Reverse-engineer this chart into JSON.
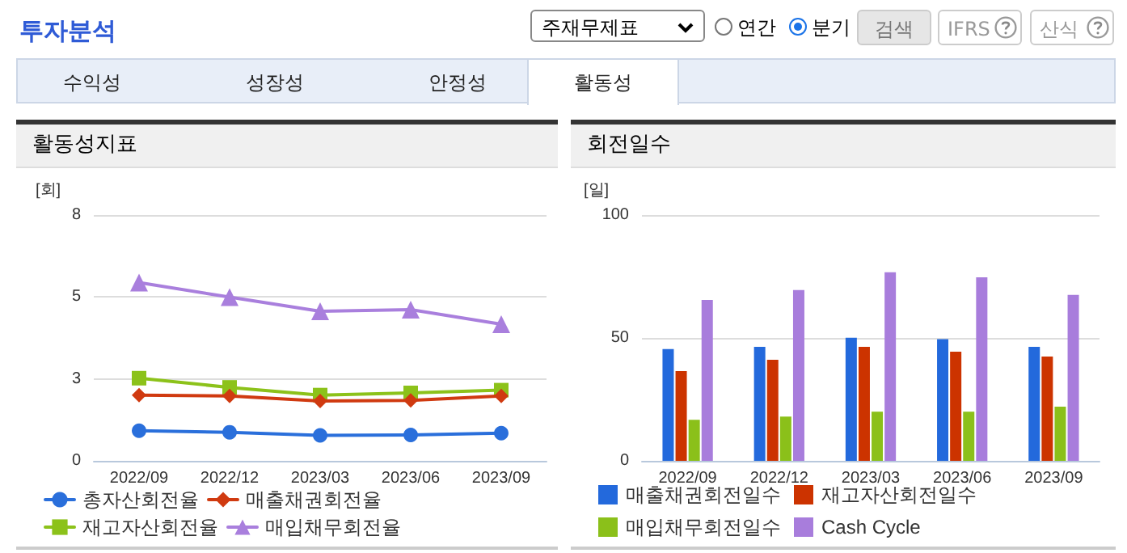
{
  "chart_data": [
    {
      "type": "other",
      "title": "투자분석",
      "annotations": [
        "주재무제표",
        "연간",
        "분기",
        "검색",
        "IFRS",
        "산식",
        "수익성",
        "성장성",
        "안정성",
        "활동성"
      ]
    },
    {
      "type": "line",
      "title": "활동성지표",
      "ylabel": "[회]",
      "categories": [
        "2022/09",
        "2022/12",
        "2023/03",
        "2023/06",
        "2023/09"
      ],
      "ylim": [
        0,
        8
      ],
      "yticks": [
        0,
        {
          "value": 2.667,
          "label": "3"
        },
        {
          "value": 5.333,
          "label": "5"
        },
        8
      ],
      "grid": "y",
      "legend": "bottom",
      "line_style": "solid",
      "series": [
        {
          "name": "총자산회전율",
          "color": "#2a6fdb",
          "marker": "circle",
          "values": [
            0.98,
            0.93,
            0.83,
            0.84,
            0.9
          ]
        },
        {
          "name": "매출채권회전율",
          "color": "#d03a10",
          "marker": "diamond",
          "values": [
            2.14,
            2.11,
            1.95,
            1.97,
            2.11
          ]
        },
        {
          "name": "재고자산회전율",
          "color": "#8cc21a",
          "marker": "square",
          "values": [
            2.69,
            2.39,
            2.14,
            2.21,
            2.3
          ]
        },
        {
          "name": "매입채무회전율",
          "color": "#a97fdd",
          "marker": "triangle",
          "values": [
            5.8,
            5.33,
            4.87,
            4.92,
            4.45
          ]
        }
      ]
    },
    {
      "type": "bar",
      "title": "회전일수",
      "ylabel": "[일]",
      "categories": [
        "2022/09",
        "2022/12",
        "2023/03",
        "2023/06",
        "2023/09"
      ],
      "ylim": [
        0,
        100
      ],
      "yticks": [
        0,
        50,
        100
      ],
      "grid": "y",
      "legend": "bottom",
      "series": [
        {
          "name": "매출채권회전일수",
          "color": "#2369dc",
          "values": [
            45.5,
            46.4,
            50.1,
            49.5,
            46.4
          ]
        },
        {
          "name": "재고자산회전일수",
          "color": "#cc3300",
          "values": [
            36.5,
            41.1,
            46.4,
            44.4,
            42.4
          ]
        },
        {
          "name": "매입채무회전일수",
          "color": "#8bc01a",
          "values": [
            16.7,
            18,
            20,
            20,
            22
          ]
        },
        {
          "name": "Cash Cycle",
          "color": "#a87ddc",
          "values": [
            65.5,
            69.5,
            76.7,
            74.7,
            67.5
          ]
        }
      ]
    }
  ]
}
